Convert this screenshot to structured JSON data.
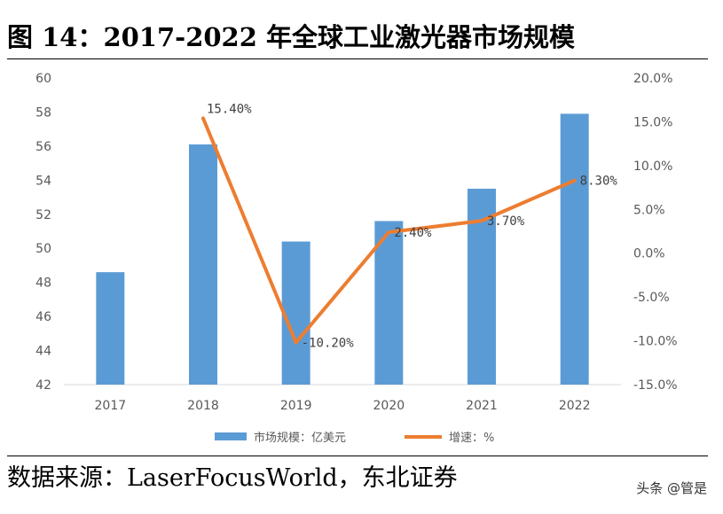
{
  "figure": {
    "title": "图 14：2017-2022 年全球工业激光器市场规模",
    "source": "数据来源：LaserFocusWorld，东北证券",
    "watermark": "头条 @管是"
  },
  "colors": {
    "bar": "#5B9BD5",
    "line": "#ED7D31",
    "axis": "#D9D9D9"
  },
  "chart_data": {
    "type": "bar",
    "categories": [
      "2017",
      "2018",
      "2019",
      "2020",
      "2021",
      "2022"
    ],
    "series": [
      {
        "name": "市场规模：亿美元",
        "chart": "bar",
        "axis": "left",
        "values": [
          48.6,
          56.1,
          50.4,
          51.6,
          53.5,
          57.9
        ]
      },
      {
        "name": "增速：%",
        "chart": "line",
        "axis": "right",
        "values": [
          null,
          15.4,
          -10.2,
          2.4,
          3.7,
          8.3
        ],
        "data_labels": [
          "",
          "15.40%",
          "-10.20%",
          "2.40%",
          "3.70%",
          "8.30%"
        ]
      }
    ],
    "y_left": {
      "lim": [
        42,
        60
      ],
      "ticks": [
        42,
        44,
        46,
        48,
        50,
        52,
        54,
        56,
        58,
        60
      ],
      "tick_labels": [
        "42",
        "44",
        "46",
        "48",
        "50",
        "52",
        "54",
        "56",
        "58",
        "60"
      ]
    },
    "y_right": {
      "lim": [
        -15,
        20
      ],
      "ticks": [
        -15,
        -10,
        -5,
        0,
        5,
        10,
        15,
        20
      ],
      "tick_labels": [
        "-15.0%",
        "-10.0%",
        "-5.0%",
        "0.0%",
        "5.0%",
        "10.0%",
        "15.0%",
        "20.0%"
      ]
    },
    "grid": false,
    "legend_position": "bottom"
  }
}
